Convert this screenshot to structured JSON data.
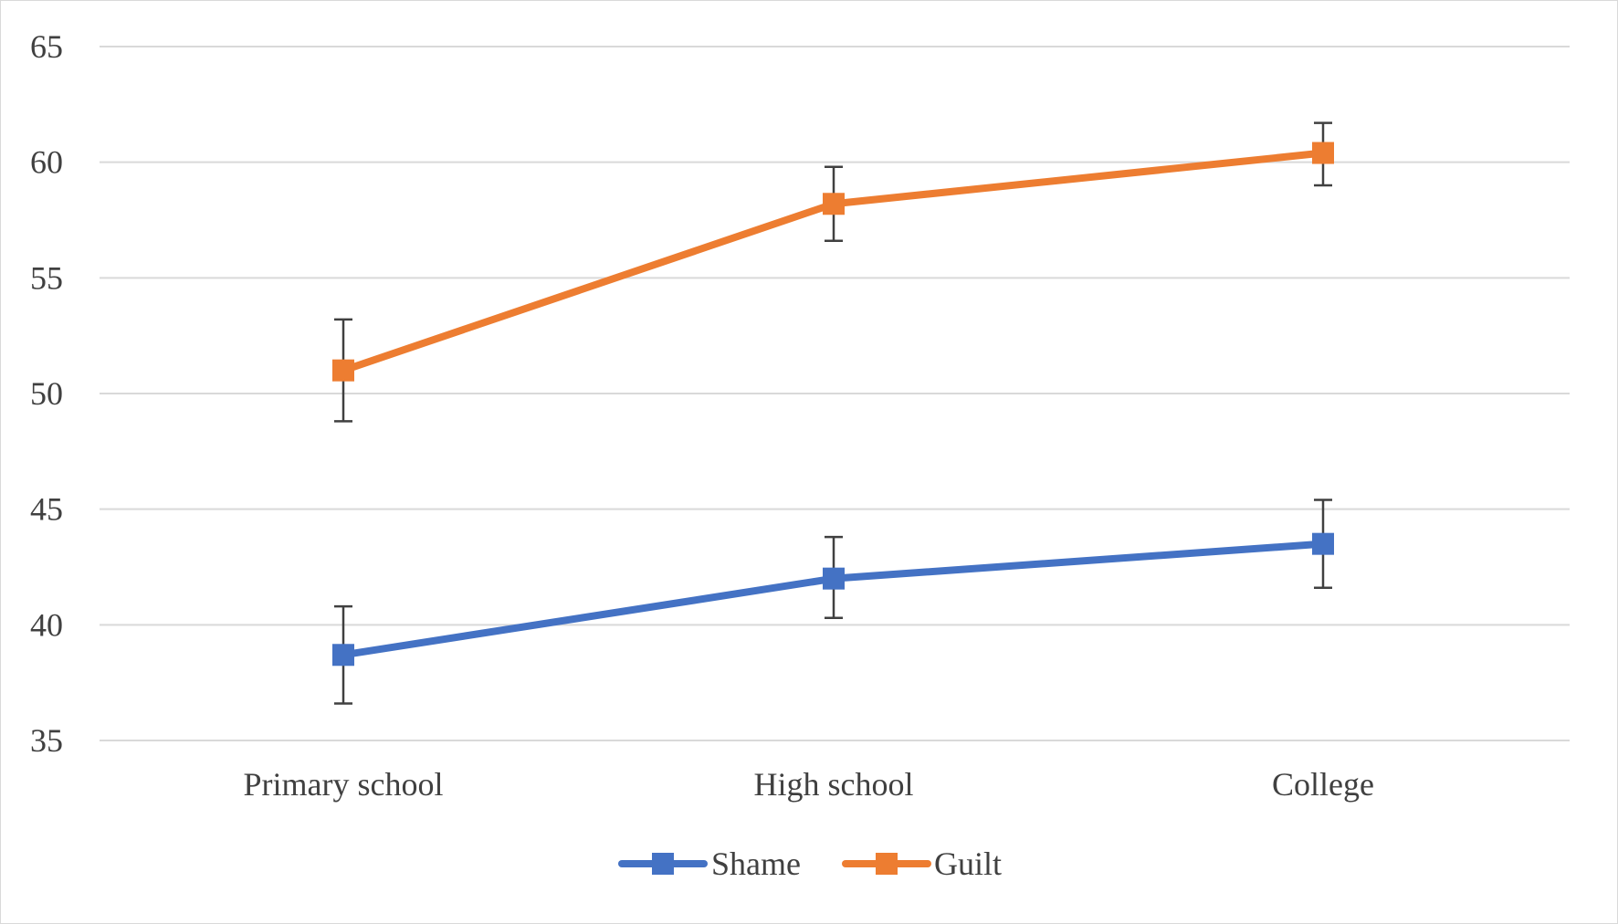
{
  "chart_data": {
    "type": "line",
    "title": "",
    "xlabel": "",
    "ylabel": "",
    "categories": [
      "Primary school",
      "High school",
      "College"
    ],
    "ylim": [
      35,
      65
    ],
    "yticks": [
      35,
      40,
      45,
      50,
      55,
      60,
      65
    ],
    "grid": true,
    "legend": "bottom",
    "series": [
      {
        "name": "Shame",
        "color": "#4472c4",
        "marker": "square",
        "values": [
          38.7,
          42.0,
          43.5
        ],
        "error_low": [
          36.6,
          40.3,
          41.6
        ],
        "error_high": [
          40.8,
          43.8,
          45.4
        ]
      },
      {
        "name": "Guilt",
        "color": "#ed7d31",
        "marker": "square",
        "values": [
          51.0,
          58.2,
          60.4
        ],
        "error_low": [
          48.8,
          56.6,
          59.0
        ],
        "error_high": [
          53.2,
          59.8,
          61.7
        ]
      }
    ]
  }
}
